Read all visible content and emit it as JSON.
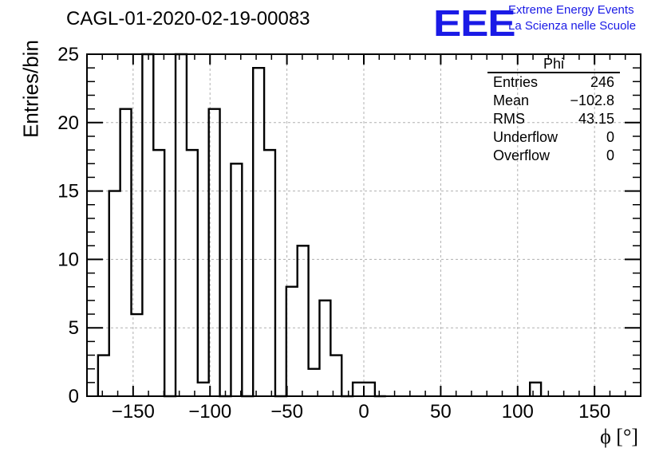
{
  "title": "CAGL-01-2020-02-19-00083",
  "logo": {
    "mark": "EEE",
    "line1": "Extreme Energy Events",
    "line2": "La Scienza nelle Scuole",
    "color": "#1a1ae6"
  },
  "stats_box": {
    "title": "Phi",
    "rows": [
      {
        "key": "Entries",
        "value": "246"
      },
      {
        "key": "Mean",
        "value": "−102.8"
      },
      {
        "key": "RMS",
        "value": "43.15"
      },
      {
        "key": "Underflow",
        "value": "0"
      },
      {
        "key": "Overflow",
        "value": "0"
      }
    ]
  },
  "chart_data": {
    "type": "bar",
    "histogram": true,
    "title": "CAGL-01-2020-02-19-00083",
    "xlabel": "ϕ [°]",
    "ylabel": "Entries/bin",
    "xlim": [
      -180,
      180
    ],
    "ylim": [
      0,
      25
    ],
    "bin_width": 7.2,
    "bin_lefts": [
      -172.8,
      -165.6,
      -158.4,
      -151.2,
      -144.0,
      -136.8,
      -129.6,
      -122.4,
      -115.2,
      -108.0,
      -100.8,
      -93.6,
      -86.4,
      -79.2,
      -72.0,
      -64.8,
      -57.6,
      -50.4,
      -43.2,
      -36.0,
      -28.8,
      -21.6,
      -14.4,
      -7.2,
      0.0,
      7.2,
      108.0
    ],
    "values": [
      3,
      15,
      21,
      6,
      25,
      18,
      0,
      25,
      18,
      1,
      21,
      0,
      17,
      0,
      24,
      18,
      0,
      8,
      11,
      2,
      7,
      3,
      0,
      1,
      1,
      0,
      1
    ],
    "x_ticks": [
      -150,
      -100,
      -50,
      0,
      50,
      100,
      150
    ],
    "x_tick_labels": [
      "−150",
      "−100",
      "−50",
      "0",
      "50",
      "100",
      "150"
    ],
    "y_ticks": [
      0,
      5,
      10,
      15,
      20,
      25
    ],
    "y_tick_labels": [
      "0",
      "5",
      "10",
      "15",
      "20",
      "25"
    ],
    "grid": true,
    "line_color": "#000000"
  }
}
